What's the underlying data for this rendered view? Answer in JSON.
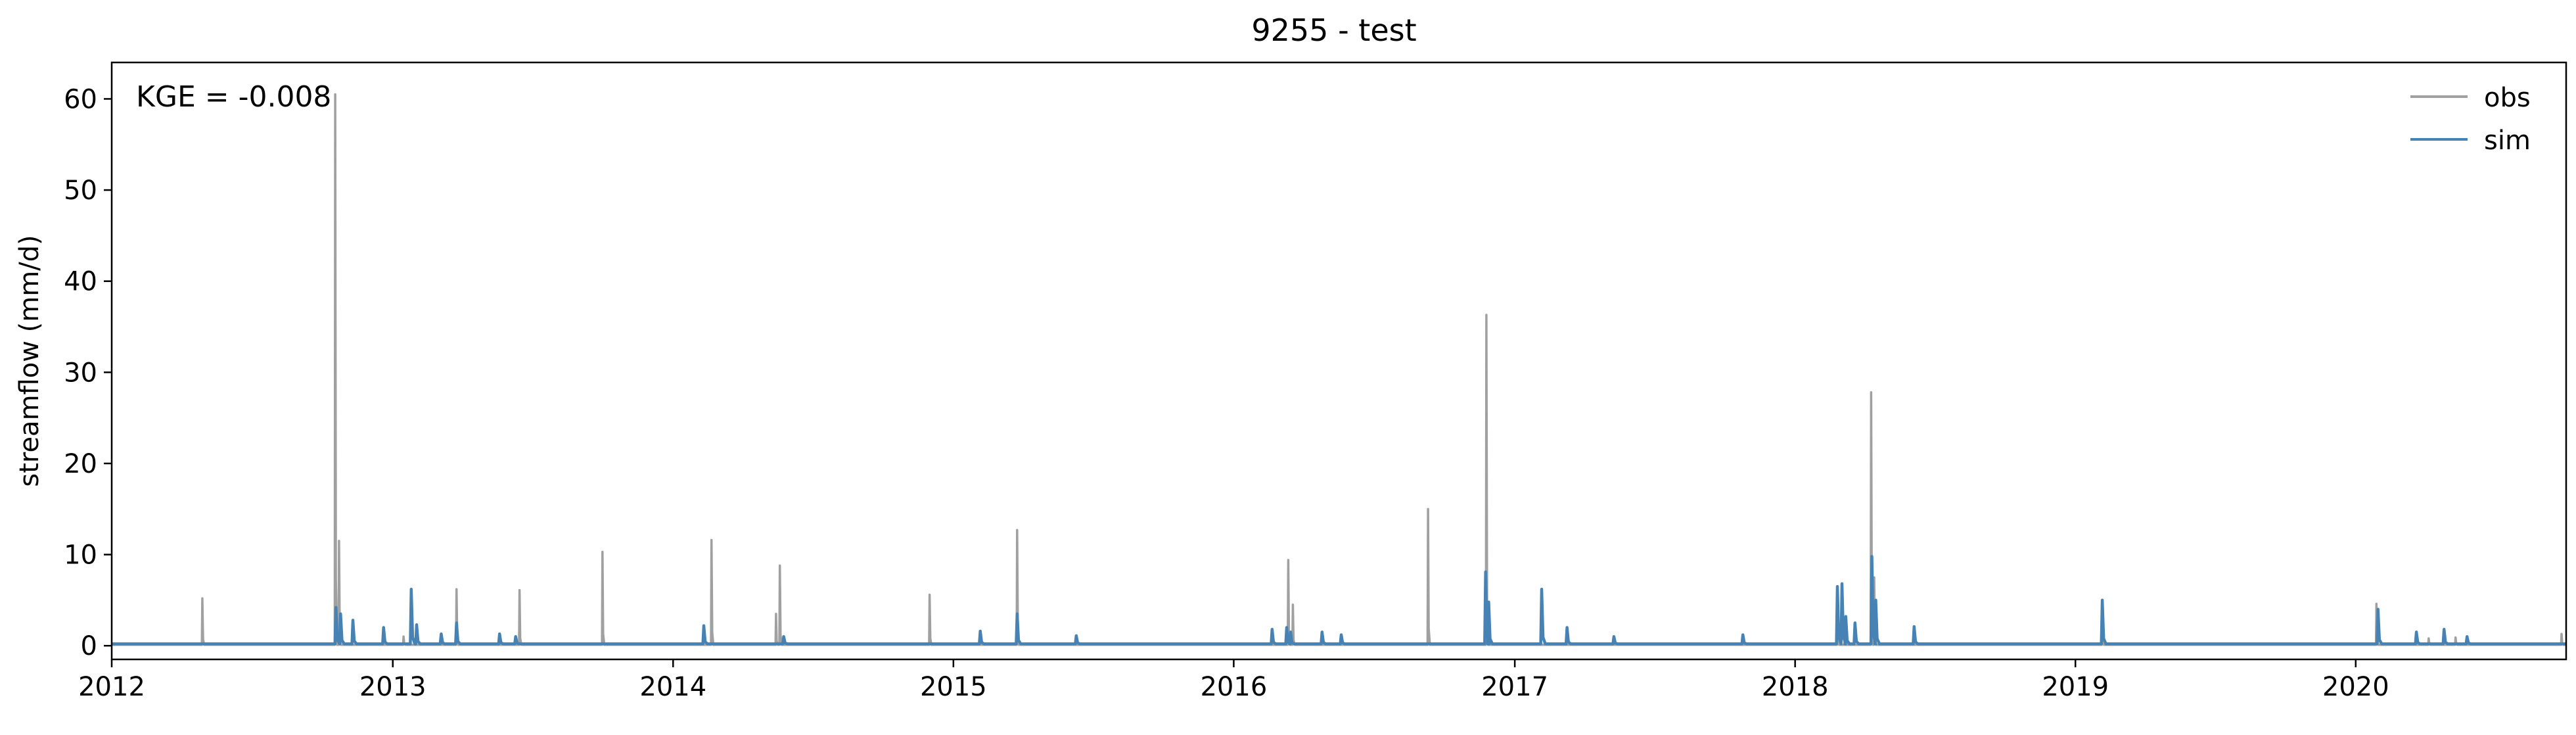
{
  "chart_data": {
    "type": "line",
    "title": "9255 - test",
    "xlabel": "",
    "ylabel": "streamflow (mm/d)",
    "annotation": "KGE = -0.008",
    "x_range": [
      "2012-01-01",
      "2020-10-01"
    ],
    "ylim": [
      -1.5,
      64
    ],
    "x_ticks": [
      {
        "label": "2012",
        "date": "2012-01-01"
      },
      {
        "label": "2013",
        "date": "2013-01-01"
      },
      {
        "label": "2014",
        "date": "2014-01-01"
      },
      {
        "label": "2015",
        "date": "2015-01-01"
      },
      {
        "label": "2016",
        "date": "2016-01-01"
      },
      {
        "label": "2017",
        "date": "2017-01-01"
      },
      {
        "label": "2018",
        "date": "2018-01-01"
      },
      {
        "label": "2019",
        "date": "2019-01-01"
      },
      {
        "label": "2020",
        "date": "2020-01-01"
      }
    ],
    "y_ticks": [
      0,
      10,
      20,
      30,
      40,
      50,
      60
    ],
    "grid": false,
    "legend_position": "top-right",
    "baseflow": {
      "obs": 0.1,
      "sim": 0.2
    },
    "series": [
      {
        "name": "obs",
        "color": "#a0a0a0",
        "peaks": [
          [
            "2012-04-28",
            5.2
          ],
          [
            "2012-10-18",
            60.5
          ],
          [
            "2012-10-23",
            11.5
          ],
          [
            "2013-01-15",
            1.0
          ],
          [
            "2013-03-25",
            6.2
          ],
          [
            "2013-06-15",
            6.1
          ],
          [
            "2013-10-01",
            10.3
          ],
          [
            "2014-02-20",
            11.6
          ],
          [
            "2014-05-15",
            3.5
          ],
          [
            "2014-05-20",
            8.8
          ],
          [
            "2014-12-01",
            5.6
          ],
          [
            "2015-03-25",
            12.7
          ],
          [
            "2016-03-12",
            9.4
          ],
          [
            "2016-03-18",
            4.5
          ],
          [
            "2016-09-10",
            15.0
          ],
          [
            "2016-11-25",
            36.3
          ],
          [
            "2018-02-25",
            1.0
          ],
          [
            "2018-04-10",
            27.8
          ],
          [
            "2018-04-14",
            7.5
          ],
          [
            "2019-02-05",
            0.8
          ],
          [
            "2020-01-28",
            4.6
          ],
          [
            "2020-04-05",
            0.8
          ],
          [
            "2020-05-10",
            0.9
          ],
          [
            "2020-09-25",
            1.3
          ]
        ]
      },
      {
        "name": "sim",
        "color": "#4682b4",
        "peaks": [
          [
            "2012-10-19",
            4.2
          ],
          [
            "2012-10-25",
            3.5
          ],
          [
            "2012-11-10",
            2.8
          ],
          [
            "2012-12-20",
            2.0
          ],
          [
            "2013-01-25",
            6.2
          ],
          [
            "2013-02-01",
            2.3
          ],
          [
            "2013-03-05",
            1.3
          ],
          [
            "2013-03-25",
            2.5
          ],
          [
            "2013-05-20",
            1.3
          ],
          [
            "2013-06-10",
            1.0
          ],
          [
            "2014-02-10",
            2.2
          ],
          [
            "2014-05-25",
            1.0
          ],
          [
            "2015-02-05",
            1.6
          ],
          [
            "2015-03-25",
            3.5
          ],
          [
            "2015-06-10",
            1.1
          ],
          [
            "2016-02-20",
            1.8
          ],
          [
            "2016-03-10",
            2.0
          ],
          [
            "2016-03-15",
            1.5
          ],
          [
            "2016-04-25",
            1.5
          ],
          [
            "2016-05-20",
            1.2
          ],
          [
            "2016-11-24",
            8.1
          ],
          [
            "2016-11-28",
            4.8
          ],
          [
            "2017-02-05",
            6.2
          ],
          [
            "2017-03-10",
            2.0
          ],
          [
            "2017-05-10",
            1.0
          ],
          [
            "2017-10-25",
            1.2
          ],
          [
            "2018-02-25",
            6.5
          ],
          [
            "2018-03-03",
            6.8
          ],
          [
            "2018-03-08",
            3.2
          ],
          [
            "2018-03-20",
            2.5
          ],
          [
            "2018-04-11",
            9.8
          ],
          [
            "2018-04-16",
            5.0
          ],
          [
            "2018-06-05",
            2.1
          ],
          [
            "2019-02-05",
            5.0
          ],
          [
            "2020-01-30",
            4.0
          ],
          [
            "2020-03-20",
            1.5
          ],
          [
            "2020-04-25",
            1.8
          ],
          [
            "2020-05-25",
            1.0
          ]
        ]
      }
    ]
  }
}
